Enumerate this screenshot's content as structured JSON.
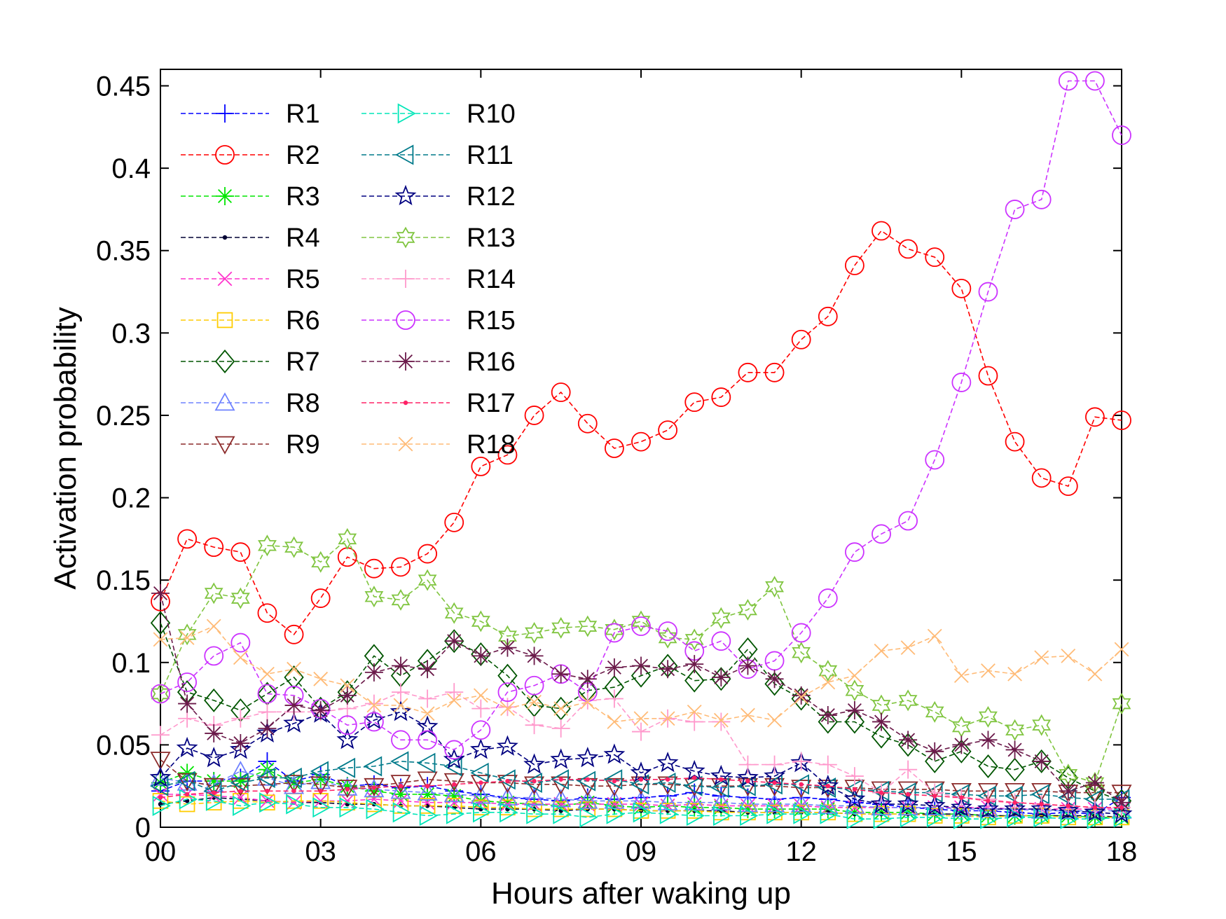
{
  "chart_data": {
    "type": "line",
    "title": "",
    "xlabel": "Hours after waking up",
    "ylabel": "Activation probability",
    "xlim": [
      0,
      18
    ],
    "ylim": [
      0,
      0.46
    ],
    "x_ticks": [
      0,
      3,
      6,
      9,
      12,
      15,
      18
    ],
    "x_tick_labels": [
      "00",
      "03",
      "06",
      "09",
      "12",
      "15",
      "18"
    ],
    "y_ticks": [
      0,
      0.05,
      0.1,
      0.15,
      0.2,
      0.25,
      0.3,
      0.35,
      0.4,
      0.45
    ],
    "y_tick_labels": [
      "0",
      "0.05",
      "0.1",
      "0.15",
      "0.2",
      "0.25",
      "0.3",
      "0.35",
      "0.4",
      "0.45"
    ],
    "grid": false,
    "legend_position": "top-left",
    "x": [
      0,
      0.5,
      1,
      1.5,
      2,
      2.5,
      3,
      3.5,
      4,
      4.5,
      5,
      5.5,
      6,
      6.5,
      7,
      7.5,
      8,
      8.5,
      9,
      9.5,
      10,
      10.5,
      11,
      11.5,
      12,
      12.5,
      13,
      13.5,
      14,
      14.5,
      15,
      15.5,
      16,
      16.5,
      17,
      17.5,
      18
    ],
    "series": [
      {
        "name": "R1",
        "color": "#0000ff",
        "marker": "plus",
        "values": [
          0.022,
          0.028,
          0.028,
          0.03,
          0.04,
          0.028,
          0.032,
          0.025,
          0.026,
          0.024,
          0.025,
          0.022,
          0.02,
          0.018,
          0.017,
          0.016,
          0.018,
          0.017,
          0.018,
          0.019,
          0.021,
          0.019,
          0.018,
          0.017,
          0.018,
          0.017,
          0.015,
          0.014,
          0.012,
          0.011,
          0.01,
          0.01,
          0.009,
          0.008,
          0.009,
          0.008,
          0.018
        ]
      },
      {
        "name": "R2",
        "color": "#ff0000",
        "marker": "circle",
        "values": [
          0.137,
          0.175,
          0.17,
          0.167,
          0.13,
          0.117,
          0.139,
          0.164,
          0.157,
          0.158,
          0.166,
          0.185,
          0.219,
          0.226,
          0.25,
          0.264,
          0.245,
          0.23,
          0.234,
          0.241,
          0.258,
          0.261,
          0.276,
          0.276,
          0.296,
          0.31,
          0.341,
          0.362,
          0.351,
          0.346,
          0.327,
          0.274,
          0.234,
          0.212,
          0.207,
          0.249,
          0.247
        ]
      },
      {
        "name": "R3",
        "color": "#00e600",
        "marker": "asterisk",
        "values": [
          0.027,
          0.033,
          0.028,
          0.028,
          0.035,
          0.027,
          0.029,
          0.025,
          0.022,
          0.02,
          0.02,
          0.019,
          0.016,
          0.015,
          0.014,
          0.013,
          0.015,
          0.013,
          0.012,
          0.013,
          0.012,
          0.012,
          0.011,
          0.011,
          0.011,
          0.011,
          0.009,
          0.009,
          0.009,
          0.008,
          0.008,
          0.007,
          0.007,
          0.007,
          0.007,
          0.006,
          0.006
        ]
      },
      {
        "name": "R4",
        "color": "#000033",
        "marker": "dot",
        "values": [
          0.014,
          0.016,
          0.018,
          0.017,
          0.016,
          0.015,
          0.015,
          0.014,
          0.014,
          0.013,
          0.013,
          0.012,
          0.011,
          0.011,
          0.011,
          0.01,
          0.011,
          0.011,
          0.01,
          0.01,
          0.01,
          0.01,
          0.009,
          0.009,
          0.009,
          0.009,
          0.008,
          0.008,
          0.008,
          0.008,
          0.008,
          0.007,
          0.007,
          0.007,
          0.007,
          0.007,
          0.006
        ]
      },
      {
        "name": "R5",
        "color": "#ff33cc",
        "marker": "x",
        "values": [
          0.02,
          0.02,
          0.019,
          0.018,
          0.016,
          0.015,
          0.016,
          0.016,
          0.017,
          0.016,
          0.015,
          0.015,
          0.015,
          0.014,
          0.014,
          0.014,
          0.014,
          0.014,
          0.014,
          0.013,
          0.014,
          0.013,
          0.013,
          0.013,
          0.013,
          0.012,
          0.012,
          0.012,
          0.012,
          0.012,
          0.012,
          0.012,
          0.011,
          0.011,
          0.011,
          0.011,
          0.011
        ]
      },
      {
        "name": "R6",
        "color": "#ffcc00",
        "marker": "square",
        "values": [
          0.016,
          0.014,
          0.015,
          0.016,
          0.015,
          0.016,
          0.016,
          0.015,
          0.014,
          0.013,
          0.013,
          0.013,
          0.012,
          0.012,
          0.011,
          0.011,
          0.011,
          0.011,
          0.01,
          0.01,
          0.01,
          0.009,
          0.009,
          0.009,
          0.009,
          0.009,
          0.008,
          0.008,
          0.008,
          0.007,
          0.007,
          0.006,
          0.007,
          0.007,
          0.006,
          0.006,
          0.006
        ]
      },
      {
        "name": "R7",
        "color": "#005500",
        "marker": "diamond",
        "values": [
          0.124,
          0.082,
          0.077,
          0.071,
          0.081,
          0.091,
          0.072,
          0.082,
          0.104,
          0.092,
          0.101,
          0.113,
          0.105,
          0.092,
          0.074,
          0.072,
          0.083,
          0.085,
          0.092,
          0.098,
          0.089,
          0.09,
          0.108,
          0.087,
          0.078,
          0.064,
          0.064,
          0.055,
          0.05,
          0.04,
          0.046,
          0.037,
          0.035,
          0.04,
          0.03,
          0.022,
          0.016
        ]
      },
      {
        "name": "R8",
        "color": "#6f82ff",
        "marker": "triangle-up",
        "values": [
          0.03,
          0.027,
          0.026,
          0.034,
          0.03,
          0.025,
          0.028,
          0.024,
          0.023,
          0.022,
          0.021,
          0.02,
          0.019,
          0.018,
          0.018,
          0.017,
          0.016,
          0.016,
          0.016,
          0.015,
          0.015,
          0.015,
          0.014,
          0.014,
          0.014,
          0.013,
          0.013,
          0.012,
          0.012,
          0.012,
          0.011,
          0.011,
          0.011,
          0.01,
          0.01,
          0.01,
          0.01
        ]
      },
      {
        "name": "R9",
        "color": "#8b2a2a",
        "marker": "triangle-down",
        "values": [
          0.041,
          0.028,
          0.025,
          0.025,
          0.026,
          0.027,
          0.026,
          0.024,
          0.025,
          0.027,
          0.029,
          0.028,
          0.027,
          0.027,
          0.026,
          0.026,
          0.025,
          0.025,
          0.026,
          0.026,
          0.025,
          0.025,
          0.025,
          0.025,
          0.024,
          0.024,
          0.024,
          0.023,
          0.023,
          0.023,
          0.022,
          0.022,
          0.022,
          0.022,
          0.021,
          0.021,
          0.021
        ]
      },
      {
        "name": "R10",
        "color": "#00e6b8",
        "marker": "triangle-right",
        "values": [
          0.013,
          0.017,
          0.016,
          0.013,
          0.015,
          0.014,
          0.012,
          0.012,
          0.011,
          0.009,
          0.007,
          0.008,
          0.009,
          0.009,
          0.008,
          0.008,
          0.006,
          0.008,
          0.009,
          0.008,
          0.007,
          0.007,
          0.007,
          0.008,
          0.008,
          0.008,
          0.005,
          0.005,
          0.006,
          0.006,
          0.005,
          0.005,
          0.006,
          0.006,
          0.005,
          0.005,
          0.006
        ]
      },
      {
        "name": "R11",
        "color": "#007a8a",
        "marker": "triangle-left",
        "values": [
          0.025,
          0.028,
          0.022,
          0.027,
          0.03,
          0.03,
          0.034,
          0.036,
          0.037,
          0.04,
          0.039,
          0.037,
          0.033,
          0.029,
          0.027,
          0.029,
          0.028,
          0.029,
          0.026,
          0.027,
          0.025,
          0.024,
          0.025,
          0.026,
          0.026,
          0.024,
          0.023,
          0.022,
          0.021,
          0.021,
          0.02,
          0.019,
          0.019,
          0.02,
          0.018,
          0.017,
          0.017
        ]
      },
      {
        "name": "R12",
        "color": "#000080",
        "marker": "star",
        "values": [
          0.03,
          0.048,
          0.042,
          0.047,
          0.057,
          0.063,
          0.069,
          0.053,
          0.065,
          0.07,
          0.061,
          0.041,
          0.047,
          0.049,
          0.038,
          0.041,
          0.042,
          0.044,
          0.033,
          0.039,
          0.034,
          0.031,
          0.03,
          0.031,
          0.039,
          0.025,
          0.017,
          0.014,
          0.014,
          0.013,
          0.012,
          0.011,
          0.011,
          0.011,
          0.01,
          0.009,
          0.008
        ]
      },
      {
        "name": "R13",
        "color": "#80c540",
        "marker": "hexagram",
        "values": [
          0.081,
          0.117,
          0.142,
          0.139,
          0.171,
          0.17,
          0.161,
          0.175,
          0.14,
          0.138,
          0.15,
          0.13,
          0.125,
          0.116,
          0.118,
          0.121,
          0.122,
          0.12,
          0.125,
          0.115,
          0.114,
          0.127,
          0.132,
          0.146,
          0.106,
          0.095,
          0.083,
          0.074,
          0.077,
          0.07,
          0.061,
          0.067,
          0.059,
          0.062,
          0.032,
          0.027,
          0.075
        ]
      },
      {
        "name": "R14",
        "color": "#ff99cc",
        "marker": "plus",
        "values": [
          0.056,
          0.066,
          0.062,
          0.066,
          0.07,
          0.07,
          0.07,
          0.072,
          0.075,
          0.082,
          0.078,
          0.082,
          0.072,
          0.073,
          0.062,
          0.06,
          0.077,
          0.078,
          0.058,
          0.066,
          0.064,
          0.064,
          0.038,
          0.038,
          0.04,
          0.038,
          0.031,
          0.021,
          0.035,
          0.021,
          0.018,
          0.017,
          0.015,
          0.014,
          0.013,
          0.012,
          0.012
        ]
      },
      {
        "name": "R15",
        "color": "#cc33ff",
        "marker": "circle",
        "values": [
          0.081,
          0.088,
          0.104,
          0.112,
          0.081,
          0.08,
          0.072,
          0.062,
          0.064,
          0.053,
          0.053,
          0.047,
          0.059,
          0.082,
          0.086,
          0.093,
          0.082,
          0.118,
          0.122,
          0.119,
          0.107,
          0.113,
          0.096,
          0.101,
          0.118,
          0.139,
          0.167,
          0.178,
          0.186,
          0.223,
          0.27,
          0.325,
          0.375,
          0.381,
          0.453,
          0.453,
          0.42
        ]
      },
      {
        "name": "R16",
        "color": "#6b1a4a",
        "marker": "asterisk",
        "values": [
          0.142,
          0.075,
          0.057,
          0.051,
          0.06,
          0.074,
          0.071,
          0.08,
          0.094,
          0.098,
          0.096,
          0.113,
          0.104,
          0.109,
          0.104,
          0.093,
          0.09,
          0.097,
          0.098,
          0.096,
          0.099,
          0.091,
          0.098,
          0.09,
          0.08,
          0.068,
          0.071,
          0.064,
          0.053,
          0.046,
          0.05,
          0.053,
          0.047,
          0.04,
          0.022,
          0.027,
          0.015
        ]
      },
      {
        "name": "R17",
        "color": "#ff2266",
        "marker": "dot",
        "values": [
          0.018,
          0.02,
          0.021,
          0.022,
          0.022,
          0.022,
          0.022,
          0.023,
          0.024,
          0.025,
          0.025,
          0.026,
          0.027,
          0.028,
          0.028,
          0.029,
          0.029,
          0.028,
          0.029,
          0.029,
          0.03,
          0.029,
          0.028,
          0.027,
          0.026,
          0.025,
          0.023,
          0.021,
          0.02,
          0.019,
          0.018,
          0.016,
          0.015,
          0.014,
          0.013,
          0.012,
          0.012
        ]
      },
      {
        "name": "R18",
        "color": "#ffbb77",
        "marker": "x",
        "values": [
          0.114,
          0.115,
          0.122,
          0.103,
          0.093,
          0.096,
          0.09,
          0.086,
          0.074,
          0.074,
          0.069,
          0.077,
          0.08,
          0.072,
          0.076,
          0.072,
          0.076,
          0.064,
          0.066,
          0.066,
          0.07,
          0.065,
          0.068,
          0.065,
          0.079,
          0.088,
          0.092,
          0.107,
          0.109,
          0.116,
          0.092,
          0.095,
          0.093,
          0.103,
          0.104,
          0.093,
          0.108
        ]
      }
    ]
  }
}
